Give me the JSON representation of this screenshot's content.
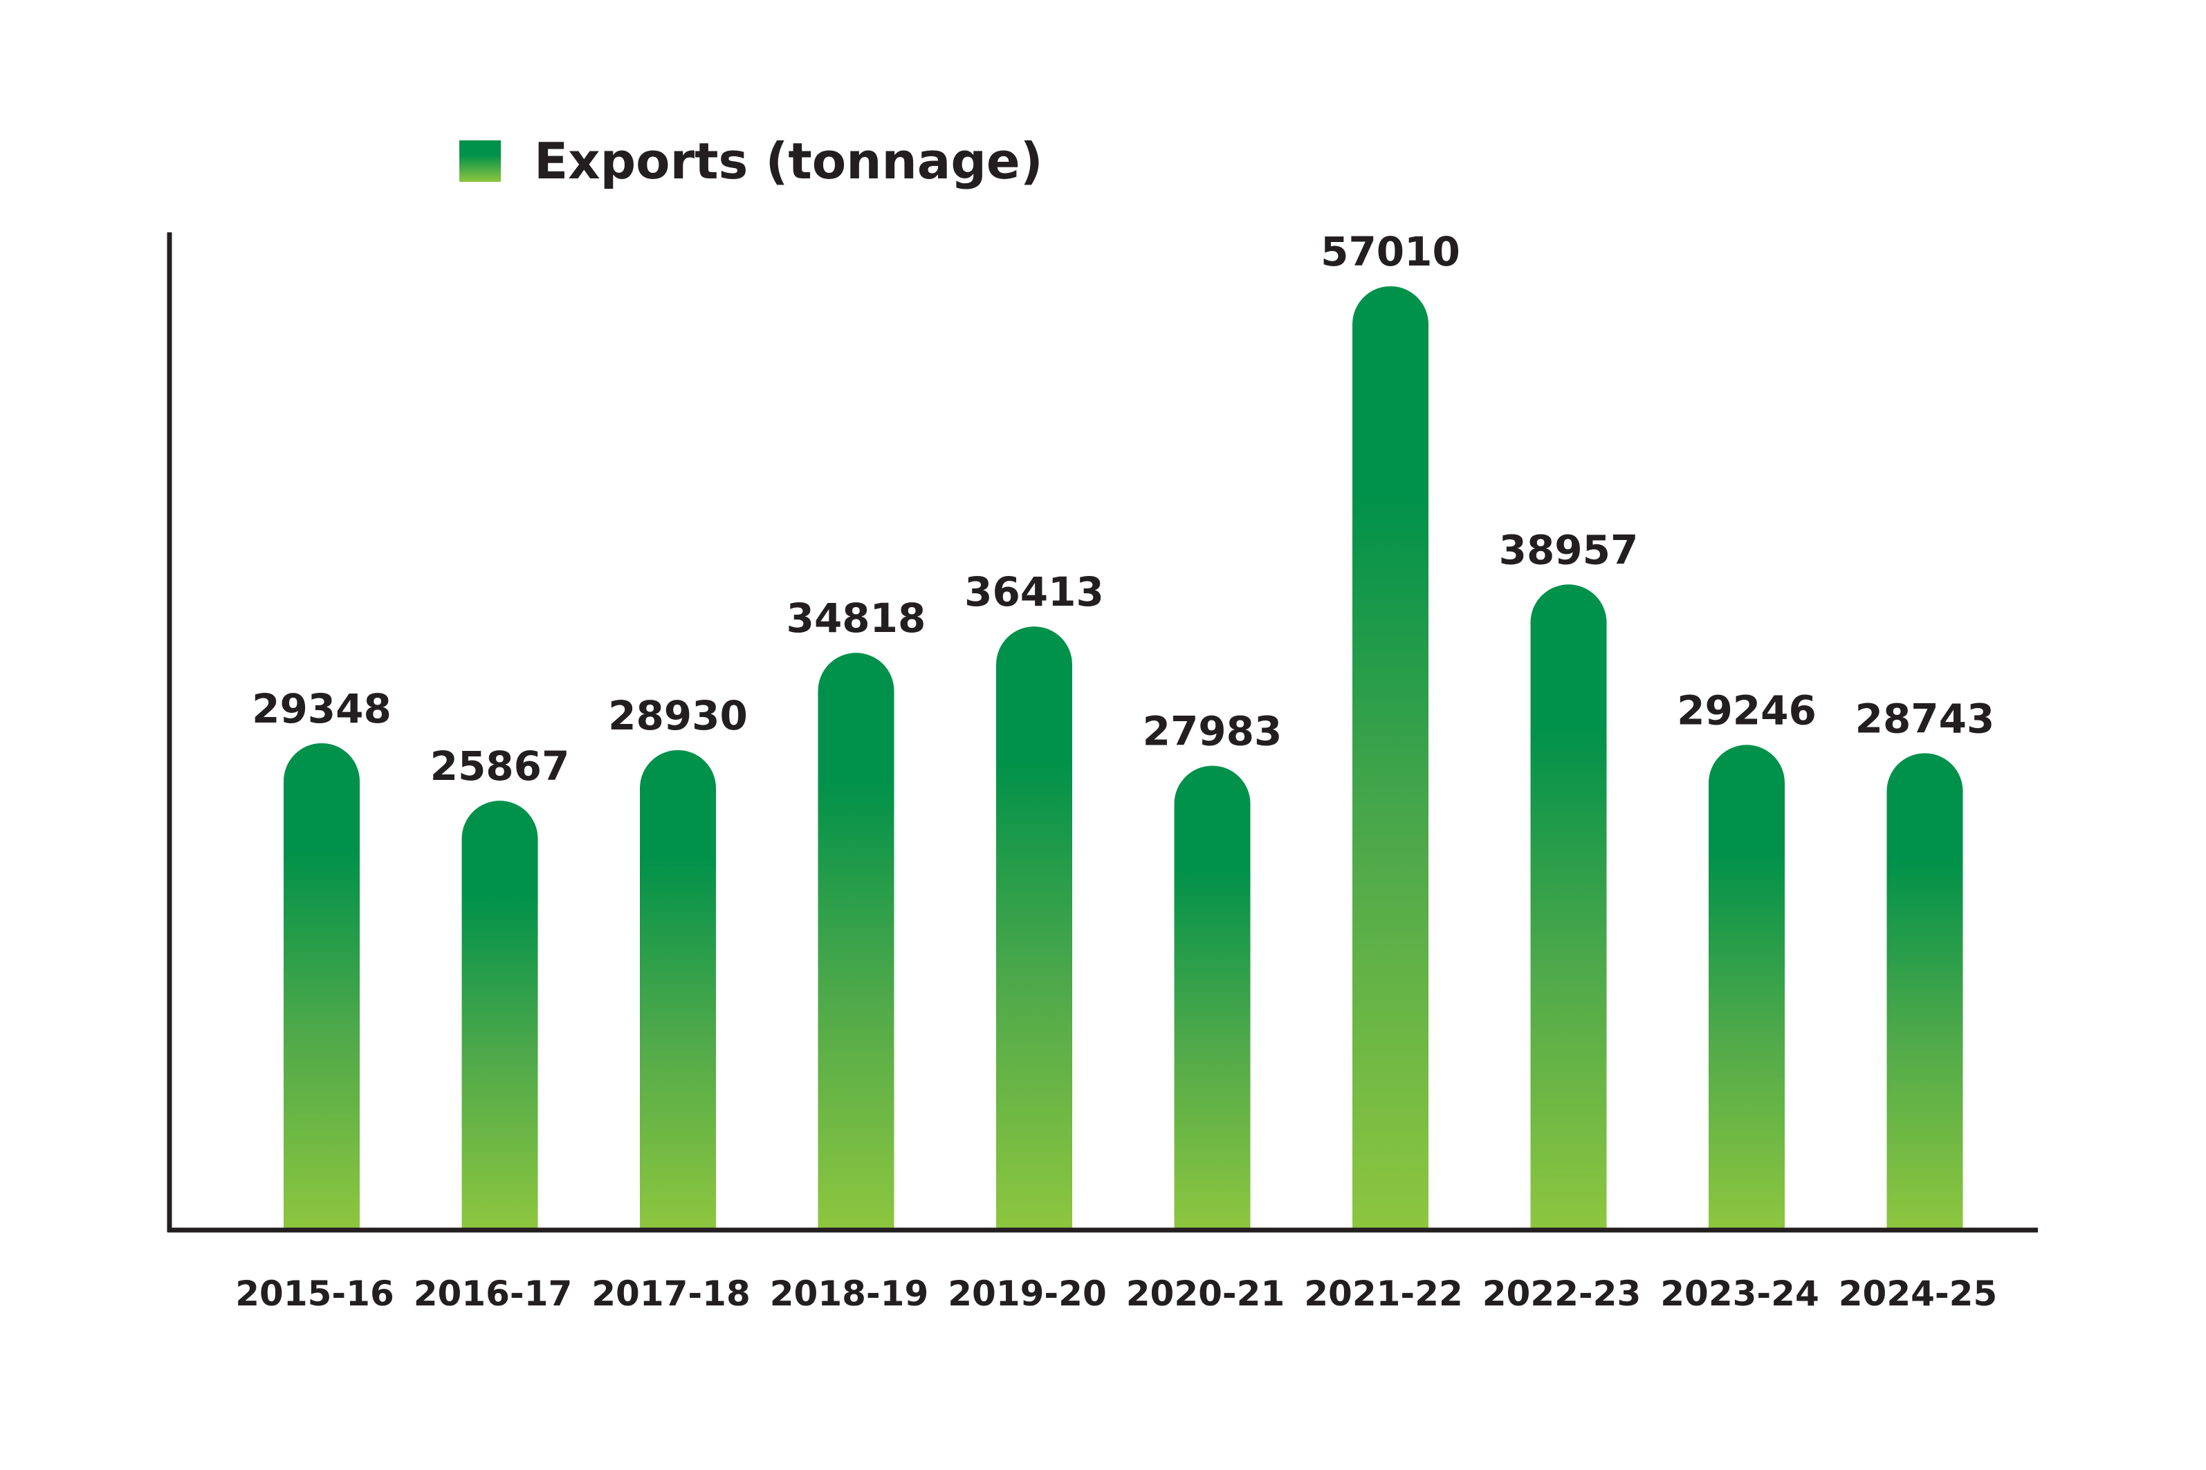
{
  "chart_data": {
    "type": "bar",
    "title": "",
    "xlabel": "",
    "ylabel": "",
    "categories": [
      "2015-16",
      "2016-17",
      "2017-18",
      "2018-19",
      "2019-20",
      "2020-21",
      "2021-22",
      "2022-23",
      "2023-24",
      "2024-25"
    ],
    "series": [
      {
        "name": "Exports (tonnage)",
        "values": [
          29348,
          25867,
          28930,
          34818,
          36413,
          27983,
          57010,
          38957,
          29246,
          28743
        ]
      }
    ],
    "ylim": [
      0,
      57010
    ],
    "grid": false,
    "legend_position": "top-left",
    "data_labels": true,
    "colors": {
      "bar_top": "#00914a",
      "bar_bottom": "#8dc63f",
      "axis": "#231f20",
      "text": "#231f20"
    }
  }
}
